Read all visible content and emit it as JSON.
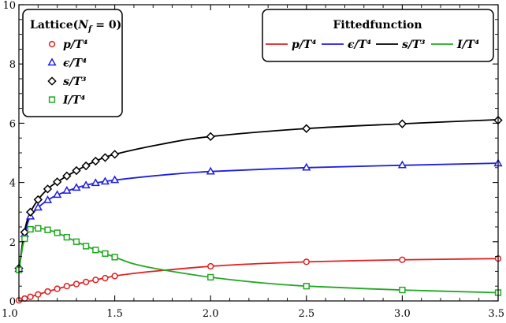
{
  "chart_data": {
    "type": "line",
    "x_range": [
      1.0,
      3.5
    ],
    "y_range": [
      0,
      10
    ],
    "x_ticks": [
      1.0,
      1.5,
      2.0,
      2.5,
      3.0,
      3.5
    ],
    "x_tick_labels": [
      "1.0",
      "1.5",
      "2.0",
      "2.5",
      "3.0",
      "3.5"
    ],
    "y_ticks": [
      0,
      2,
      4,
      6,
      8,
      10
    ],
    "y_tick_labels": [
      "0",
      "2",
      "4",
      "6",
      "8",
      "10"
    ],
    "grid": false,
    "legend_left": {
      "title": "Lattice(N_f = 0)",
      "title_main": "Lattice(",
      "title_sym": "N",
      "title_sub": "f",
      "title_tail": " = 0)",
      "placement": "top-left",
      "entries": [
        {
          "label": "p/T⁴",
          "color": "#e02020",
          "marker": "circle"
        },
        {
          "label": "ϵ/T⁴",
          "color": "#1f1fe0",
          "marker": "triangle"
        },
        {
          "label": "s/T³",
          "color": "#000000",
          "marker": "diamond"
        },
        {
          "label": "I/T⁴",
          "color": "#22a822",
          "marker": "square"
        }
      ]
    },
    "legend_right": {
      "title": "Fittedfunction",
      "placement": "top-right",
      "entries": [
        {
          "label": "p/T⁴",
          "color": "#e02020"
        },
        {
          "label": "ϵ/T⁴",
          "color": "#1f1fe0"
        },
        {
          "label": "s/T³",
          "color": "#000000"
        },
        {
          "label": "I/T⁴",
          "color": "#22a822"
        }
      ]
    },
    "series": [
      {
        "name": "p/T⁴",
        "color": "#e02020",
        "marker": "circle",
        "points": [
          [
            1.0,
            0.02
          ],
          [
            1.03,
            0.08
          ],
          [
            1.06,
            0.14
          ],
          [
            1.1,
            0.22
          ],
          [
            1.15,
            0.32
          ],
          [
            1.2,
            0.41
          ],
          [
            1.25,
            0.5
          ],
          [
            1.3,
            0.57
          ],
          [
            1.35,
            0.64
          ],
          [
            1.4,
            0.71
          ],
          [
            1.45,
            0.77
          ],
          [
            1.5,
            0.84
          ],
          [
            2.0,
            1.17
          ],
          [
            2.5,
            1.32
          ],
          [
            3.0,
            1.39
          ],
          [
            3.5,
            1.43
          ]
        ],
        "curve": [
          [
            1.0,
            0.0
          ],
          [
            1.05,
            0.12
          ],
          [
            1.1,
            0.22
          ],
          [
            1.2,
            0.41
          ],
          [
            1.3,
            0.57
          ],
          [
            1.4,
            0.71
          ],
          [
            1.5,
            0.84
          ],
          [
            1.6,
            0.93
          ],
          [
            1.75,
            1.03
          ],
          [
            2.0,
            1.17
          ],
          [
            2.25,
            1.26
          ],
          [
            2.5,
            1.32
          ],
          [
            2.75,
            1.36
          ],
          [
            3.0,
            1.39
          ],
          [
            3.25,
            1.41
          ],
          [
            3.5,
            1.43
          ]
        ]
      },
      {
        "name": "ϵ/T⁴",
        "color": "#1f1fe0",
        "marker": "triangle",
        "points": [
          [
            1.0,
            1.08
          ],
          [
            1.03,
            2.25
          ],
          [
            1.06,
            2.85
          ],
          [
            1.1,
            3.15
          ],
          [
            1.15,
            3.4
          ],
          [
            1.2,
            3.58
          ],
          [
            1.25,
            3.72
          ],
          [
            1.3,
            3.82
          ],
          [
            1.35,
            3.9
          ],
          [
            1.4,
            3.98
          ],
          [
            1.45,
            4.03
          ],
          [
            1.5,
            4.08
          ],
          [
            2.0,
            4.37
          ],
          [
            2.5,
            4.5
          ],
          [
            3.0,
            4.58
          ],
          [
            3.5,
            4.64
          ]
        ],
        "curve": [
          [
            1.0,
            1.0
          ],
          [
            1.02,
            1.9
          ],
          [
            1.04,
            2.5
          ],
          [
            1.06,
            2.85
          ],
          [
            1.1,
            3.15
          ],
          [
            1.15,
            3.4
          ],
          [
            1.2,
            3.58
          ],
          [
            1.3,
            3.82
          ],
          [
            1.4,
            3.98
          ],
          [
            1.5,
            4.08
          ],
          [
            1.75,
            4.25
          ],
          [
            2.0,
            4.37
          ],
          [
            2.5,
            4.5
          ],
          [
            3.0,
            4.58
          ],
          [
            3.5,
            4.65
          ]
        ]
      },
      {
        "name": "s/T³",
        "color": "#000000",
        "marker": "diamond",
        "points": [
          [
            1.0,
            1.1
          ],
          [
            1.03,
            2.32
          ],
          [
            1.06,
            3.0
          ],
          [
            1.1,
            3.42
          ],
          [
            1.15,
            3.78
          ],
          [
            1.2,
            4.02
          ],
          [
            1.25,
            4.22
          ],
          [
            1.3,
            4.4
          ],
          [
            1.35,
            4.56
          ],
          [
            1.4,
            4.72
          ],
          [
            1.45,
            4.84
          ],
          [
            1.5,
            4.95
          ],
          [
            2.0,
            5.55
          ],
          [
            2.5,
            5.82
          ],
          [
            3.0,
            5.98
          ],
          [
            3.5,
            6.1
          ]
        ],
        "curve": [
          [
            1.0,
            1.0
          ],
          [
            1.02,
            2.0
          ],
          [
            1.04,
            2.65
          ],
          [
            1.06,
            3.0
          ],
          [
            1.1,
            3.42
          ],
          [
            1.15,
            3.78
          ],
          [
            1.2,
            4.02
          ],
          [
            1.3,
            4.4
          ],
          [
            1.4,
            4.72
          ],
          [
            1.5,
            4.95
          ],
          [
            1.75,
            5.3
          ],
          [
            2.0,
            5.55
          ],
          [
            2.5,
            5.82
          ],
          [
            3.0,
            5.98
          ],
          [
            3.5,
            6.12
          ]
        ]
      },
      {
        "name": "I/T⁴",
        "color": "#22a822",
        "marker": "square",
        "points": [
          [
            1.0,
            1.05
          ],
          [
            1.03,
            2.1
          ],
          [
            1.06,
            2.42
          ],
          [
            1.1,
            2.45
          ],
          [
            1.15,
            2.4
          ],
          [
            1.2,
            2.3
          ],
          [
            1.25,
            2.15
          ],
          [
            1.3,
            2.0
          ],
          [
            1.35,
            1.85
          ],
          [
            1.4,
            1.72
          ],
          [
            1.45,
            1.6
          ],
          [
            1.5,
            1.48
          ],
          [
            2.0,
            0.8
          ],
          [
            2.5,
            0.5
          ],
          [
            3.0,
            0.37
          ],
          [
            3.5,
            0.28
          ]
        ],
        "curve": [
          [
            1.0,
            1.0
          ],
          [
            1.02,
            1.85
          ],
          [
            1.04,
            2.3
          ],
          [
            1.07,
            2.45
          ],
          [
            1.1,
            2.46
          ],
          [
            1.15,
            2.4
          ],
          [
            1.2,
            2.3
          ],
          [
            1.3,
            2.0
          ],
          [
            1.4,
            1.72
          ],
          [
            1.5,
            1.48
          ],
          [
            1.6,
            1.25
          ],
          [
            1.75,
            1.05
          ],
          [
            2.0,
            0.8
          ],
          [
            2.25,
            0.62
          ],
          [
            2.5,
            0.5
          ],
          [
            3.0,
            0.37
          ],
          [
            3.5,
            0.28
          ]
        ]
      }
    ]
  }
}
